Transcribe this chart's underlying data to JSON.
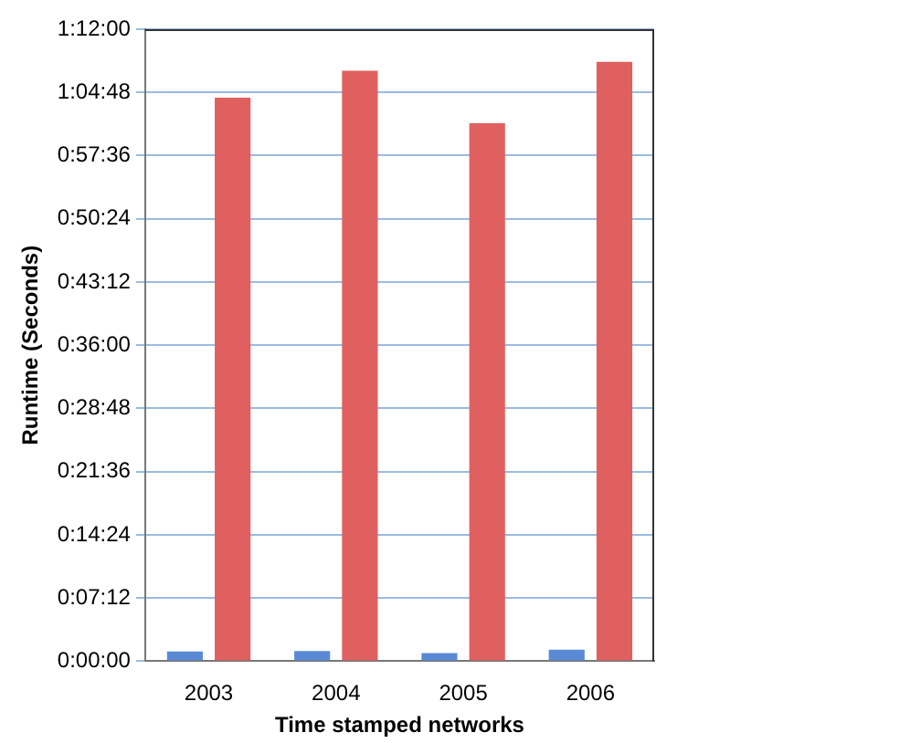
{
  "chart_data": {
    "type": "bar",
    "xlabel": "Time stamped networks",
    "ylabel": "Runtime (Seconds)",
    "categories": [
      "2003",
      "2004",
      "2005",
      "2006"
    ],
    "series": [
      {
        "color": "#5a8ad6",
        "values": [
          66,
          69,
          56,
          79
        ]
      },
      {
        "color": "#e06060",
        "values": [
          3852,
          4036,
          3678,
          4097
        ]
      }
    ],
    "ylim": [
      0,
      4320
    ],
    "yticks": [
      {
        "value": 0,
        "label": "0:00:00"
      },
      {
        "value": 432,
        "label": "0:07:12"
      },
      {
        "value": 864,
        "label": "0:14:24"
      },
      {
        "value": 1296,
        "label": "0:21:36"
      },
      {
        "value": 1728,
        "label": "0:28:48"
      },
      {
        "value": 2160,
        "label": "0:36:00"
      },
      {
        "value": 2592,
        "label": "0:43:12"
      },
      {
        "value": 3024,
        "label": "0:50:24"
      },
      {
        "value": 3456,
        "label": "0:57:36"
      },
      {
        "value": 3888,
        "label": "1:04:48"
      },
      {
        "value": 4320,
        "label": "1:12:00"
      }
    ],
    "grid": "y"
  }
}
